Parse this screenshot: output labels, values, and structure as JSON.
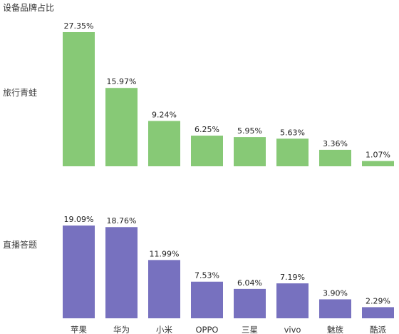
{
  "chart_data": {
    "type": "bar",
    "title": "设备品牌占比",
    "categories": [
      "苹果",
      "华为",
      "小米",
      "OPPO",
      "三星",
      "vivo",
      "魅族",
      "酷派"
    ],
    "value_labels": {
      "旅行青蛙": [
        "27.35%",
        "15.97%",
        "9.24%",
        "6.25%",
        "5.95%",
        "5.63%",
        "3.36%",
        "1.07%"
      ],
      "直播答题": [
        "19.09%",
        "18.76%",
        "11.99%",
        "7.53%",
        "6.04%",
        "7.19%",
        "3.90%",
        "2.29%"
      ]
    },
    "series": [
      {
        "name": "旅行青蛙",
        "color": "#87c976",
        "values": [
          27.35,
          15.97,
          9.24,
          6.25,
          5.95,
          5.63,
          3.36,
          1.07
        ]
      },
      {
        "name": "直播答题",
        "color": "#7771bf",
        "values": [
          19.09,
          18.76,
          11.99,
          7.53,
          6.04,
          7.19,
          3.9,
          2.29
        ]
      }
    ]
  }
}
